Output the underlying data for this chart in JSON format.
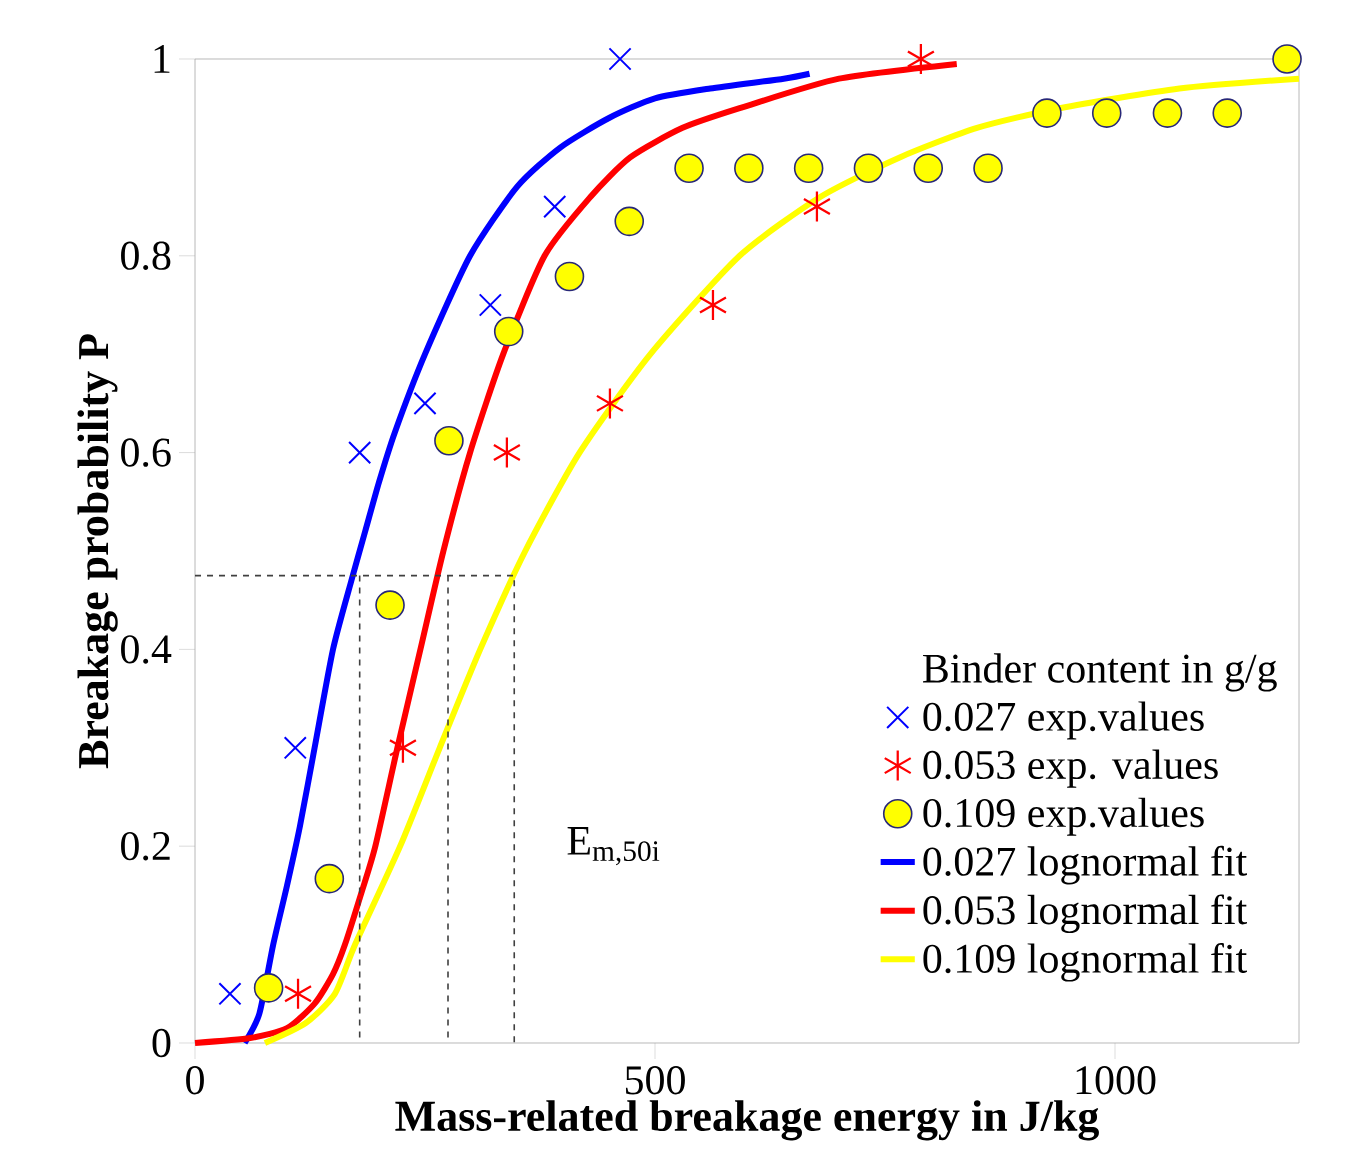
{
  "chart_data": {
    "type": "scatter",
    "xlabel": "Mass-related breakage energy in J/kg",
    "ylabel": "Breakage probability P",
    "legend_title": "Binder content in g/g",
    "xlim": [
      0,
      1200
    ],
    "ylim": [
      0,
      1
    ],
    "xticks": [
      0,
      500,
      1000
    ],
    "yticks": [
      0,
      0.2,
      0.4,
      0.6,
      0.8,
      1
    ],
    "grid": false,
    "legend": "bottom right",
    "annotations": [
      "E$_{m,50i}$"
    ],
    "series": [
      {
        "name": "0.027 exp.values",
        "marker": "cross",
        "color": "#0000ff",
        "x": [
          38,
          109,
          179,
          250,
          321,
          391,
          462
        ],
        "values": [
          0.05,
          0.3,
          0.6,
          0.65,
          0.75,
          0.85,
          1.0
        ]
      },
      {
        "name": "0.053 exp. values",
        "marker": "star",
        "color": "#ff0000",
        "x": [
          112,
          226,
          339,
          451,
          563,
          676,
          789
        ],
        "values": [
          0.05,
          0.3,
          0.6,
          0.65,
          0.75,
          0.85,
          1.0
        ]
      },
      {
        "name": "0.109 exp.values",
        "marker": "circle",
        "color": "#ffff00",
        "x": [
          80,
          146,
          212,
          276,
          341,
          407,
          472,
          537,
          602,
          667,
          732,
          797,
          862,
          926,
          991,
          1057,
          1122,
          1187
        ],
        "values": [
          0.056,
          0.167,
          0.445,
          0.612,
          0.723,
          0.779,
          0.835,
          0.889,
          0.889,
          0.889,
          0.889,
          0.889,
          0.889,
          0.945,
          0.945,
          0.945,
          0.945,
          1.0
        ]
      },
      {
        "name": "0.027 lognormal fit",
        "type": "line",
        "marker": "none",
        "line_style": "solid",
        "color": "#0000ff",
        "x": [
          54,
          70,
          85,
          100,
          114,
          130,
          150,
          170,
          185,
          200,
          217,
          250,
          299,
          350,
          397,
          450,
          500,
          560,
          640,
          668
        ],
        "values": [
          0,
          0.03,
          0.1,
          0.16,
          0.22,
          0.3,
          0.4,
          0.47,
          0.52,
          0.57,
          0.62,
          0.7,
          0.8,
          0.87,
          0.91,
          0.94,
          0.96,
          0.97,
          0.98,
          0.985
        ]
      },
      {
        "name": "0.053 lognormal fit",
        "type": "line",
        "marker": "none",
        "line_style": "solid",
        "color": "#ff0000",
        "x": [
          0,
          60,
          100,
          130,
          150,
          163,
          180,
          196,
          220,
          245,
          270,
          299,
          335,
          380,
          430,
          473,
          530,
          592,
          700,
          828
        ],
        "values": [
          0,
          0.005,
          0.015,
          0.04,
          0.07,
          0.1,
          0.15,
          0.2,
          0.3,
          0.4,
          0.5,
          0.6,
          0.7,
          0.8,
          0.86,
          0.9,
          0.93,
          0.95,
          0.98,
          0.995
        ]
      },
      {
        "name": "0.109 lognormal fit",
        "type": "line",
        "marker": "none",
        "line_style": "solid",
        "color": "#ffff00",
        "x": [
          76,
          120,
          152,
          174,
          223,
          266,
          310,
          359,
          418,
          495,
          592,
          680,
          766,
          850,
          940,
          1070,
          1200
        ],
        "values": [
          0,
          0.02,
          0.05,
          0.1,
          0.2,
          0.3,
          0.4,
          0.5,
          0.6,
          0.7,
          0.8,
          0.86,
          0.9,
          0.93,
          0.95,
          0.97,
          0.98
        ]
      },
      {
        "type": "line",
        "marker": "none",
        "line_style": "dashed",
        "color": "#404040",
        "x": [
          0,
          347,
          347,
          null,
          275,
          275,
          null,
          179,
          179
        ],
        "values": [
          0.475,
          0.475,
          0,
          null,
          0.475,
          0,
          null,
          0.475,
          0
        ]
      }
    ]
  }
}
